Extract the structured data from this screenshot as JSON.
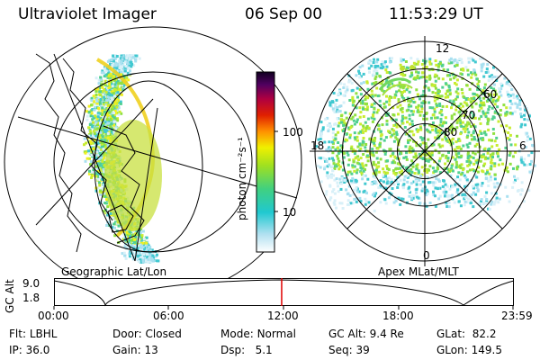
{
  "header": {
    "instrument": "Ultraviolet Imager",
    "date": "06 Sep 00",
    "time": "11:53:29 UT"
  },
  "colorbar": {
    "unit_label": "photon cm⁻²s⁻¹",
    "ticks": [
      "100",
      "10"
    ]
  },
  "left_panel": {
    "caption": "Geographic Lat/Lon"
  },
  "right_panel": {
    "caption": "Apex MLat/MLT",
    "lat_labels": [
      "60",
      "70",
      "80"
    ],
    "mlt_labels": [
      "12",
      "18",
      "6",
      "0"
    ]
  },
  "timeline": {
    "ylabel": "GC Alt",
    "yticks": [
      "9.0",
      "1.8"
    ],
    "xticks": [
      "00:00",
      "06:00",
      "12:00",
      "18:00",
      "23:59"
    ],
    "marker_fraction": 0.496
  },
  "info": {
    "row1": [
      {
        "label": "Flt:",
        "value": "LBHL"
      },
      {
        "label": "Door:",
        "value": "Closed"
      },
      {
        "label": "Mode:",
        "value": "Normal"
      },
      {
        "label": "GC Alt:",
        "value": "9.4 Re"
      },
      {
        "label": "GLat:",
        "value": "82.2"
      }
    ],
    "row2": [
      {
        "label": "IP:",
        "value": "36.0"
      },
      {
        "label": "Gain:",
        "value": "13"
      },
      {
        "label": "Dsp:",
        "value": "5.1"
      },
      {
        "label": "Seq:",
        "value": "39"
      },
      {
        "label": "GLon:",
        "value": "149.5"
      }
    ]
  },
  "colors": {
    "marker": "#e00000"
  }
}
